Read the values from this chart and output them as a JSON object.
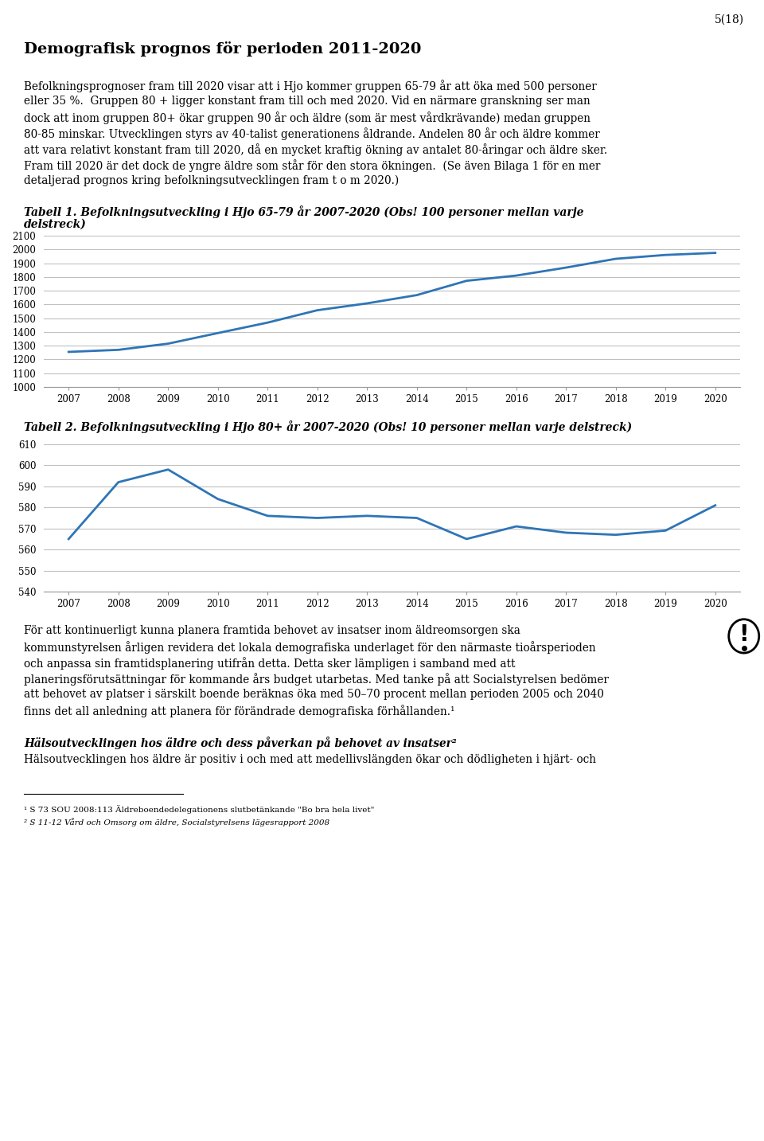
{
  "page_num": "5(18)",
  "main_title": "Demografisk prognos för perioden 2011-2020",
  "para1_lines": [
    "Befolkningsprognoser fram till 2020 visar att i Hjo kommer gruppen 65-79 år att öka med 500 personer",
    "eller 35 %.  Gruppen 80 + ligger konstant fram till och med 2020. Vid en närmare granskning ser man",
    "dock att inom gruppen 80+ ökar gruppen 90 år och äldre (som är mest vårdkrävande) medan gruppen",
    "80-85 minskar. Utvecklingen styrs av 40-talist generationens åldrande. Andelen 80 år och äldre kommer",
    "att vara relativt konstant fram till 2020, då en mycket kraftig ökning av antalet 80-åringar och äldre sker.",
    "Fram till 2020 är det dock de yngre äldre som står för den stora ökningen.  (Se även Bilaga 1 för en mer",
    "detaljerad prognos kring befolkningsutvecklingen fram t o m 2020.)"
  ],
  "chart1_title_l1": "Tabell 1. Befolkningsutveckling i Hjo 65-79 år 2007-2020 (Obs! 100 personer mellan varje",
  "chart1_title_l2": "delstreck)",
  "chart1_years": [
    2007,
    2008,
    2009,
    2010,
    2011,
    2012,
    2013,
    2014,
    2015,
    2016,
    2017,
    2018,
    2019,
    2020
  ],
  "chart1_values": [
    1255,
    1270,
    1315,
    1392,
    1468,
    1558,
    1608,
    1668,
    1772,
    1810,
    1868,
    1932,
    1960,
    1975
  ],
  "chart1_ylim": [
    1000,
    2100
  ],
  "chart1_yticks": [
    1000,
    1100,
    1200,
    1300,
    1400,
    1500,
    1600,
    1700,
    1800,
    1900,
    2000,
    2100
  ],
  "chart2_title": "Tabell 2. Befolkningsutveckling i Hjo 80+ år 2007-2020 (Obs! 10 personer mellan varje delstreck)",
  "chart2_years": [
    2007,
    2008,
    2009,
    2010,
    2011,
    2012,
    2013,
    2014,
    2015,
    2016,
    2017,
    2018,
    2019,
    2020
  ],
  "chart2_values": [
    565,
    592,
    598,
    584,
    576,
    575,
    576,
    575,
    565,
    571,
    568,
    567,
    569,
    581
  ],
  "chart2_ylim": [
    540,
    610
  ],
  "chart2_yticks": [
    540,
    550,
    560,
    570,
    580,
    590,
    600,
    610
  ],
  "line_color": "#2E75B6",
  "grid_color": "#C0C0C0",
  "text_color": "#000000",
  "bg_color": "#FFFFFF",
  "para2_lines": [
    "För att kontinuerligt kunna planera framtida behovet av insatser inom äldreomsorgen ska",
    "kommunstyrelsen årligen revidera det lokala demografiska underlaget för den närmaste tioårsperioden",
    "och anpassa sin framtidsplanering utifrån detta. Detta sker lämpligen i samband med att",
    "planeringsförutsättningar för kommande års budget utarbetas. Med tanke på att Socialstyrelsen bedömer",
    "att behovet av platser i särskilt boende beräknas öka med 50–70 procent mellan perioden 2005 och 2040",
    "finns det all anledning att planera för förändrade demografiska förhållanden.¹"
  ],
  "italic_title": "Hälsoutvecklingen hos äldre och dess påverkan på behovet av insatser²",
  "para3": "Hälsoutvecklingen hos äldre är positiv i och med att medellivslängden ökar och dödligheten i hjärt- och",
  "footnote1": "¹ S 73 SOU 2008:113 Äldreboendedelegationens slutbetänkande \"Bo bra hela livet\"",
  "footnote2": "² S 11-12 Vård och Omsorg om äldre, Socialstyrelsens lägesrapport 2008"
}
